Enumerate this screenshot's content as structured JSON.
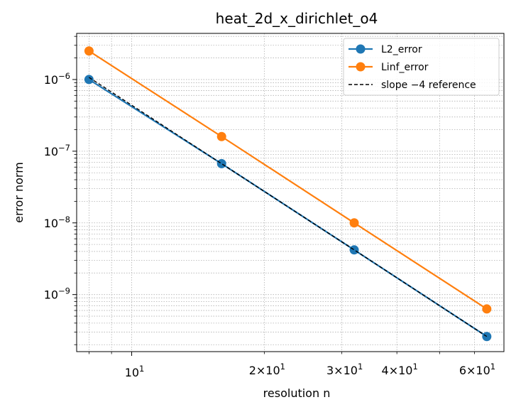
{
  "chart_data": {
    "type": "line",
    "title": "heat_2d_x_dirichlet_o4",
    "xlabel": "resolution n",
    "ylabel": "error norm",
    "xscale": "log",
    "yscale": "log",
    "xlim": [
      7.5,
      70
    ],
    "ylim": [
      1.6e-10,
      4.4e-06
    ],
    "grid": true,
    "legend_position": "top-right",
    "x": [
      8,
      16,
      32,
      64
    ],
    "series": [
      {
        "name": "L2_error",
        "values": [
          1e-06,
          6.7e-08,
          4.2e-09,
          2.6e-10
        ],
        "color": "#1f77b4",
        "marker": "circle",
        "style": "solid"
      },
      {
        "name": "Linf_error",
        "values": [
          2.5e-06,
          1.6e-07,
          1e-08,
          6.3e-10
        ],
        "color": "#ff7f0e",
        "marker": "circle",
        "style": "solid"
      },
      {
        "name": "slope −4 reference",
        "values": [
          1.07e-06,
          6.7e-08,
          4.2e-09,
          2.6e-10
        ],
        "color": "#000000",
        "marker": "none",
        "style": "dashed"
      }
    ],
    "x_tick_labels": [
      {
        "value": 10,
        "base": "10",
        "exp": "1"
      },
      {
        "value": 20,
        "base": "2×10",
        "exp": "1"
      },
      {
        "value": 30,
        "base": "3×10",
        "exp": "1"
      },
      {
        "value": 40,
        "base": "4×10",
        "exp": "1"
      },
      {
        "value": 60,
        "base": "6×10",
        "exp": "1"
      }
    ],
    "y_tick_labels": [
      {
        "value": 1e-09,
        "base": "10",
        "exp": "−9"
      },
      {
        "value": 1e-08,
        "base": "10",
        "exp": "−8"
      },
      {
        "value": 1e-07,
        "base": "10",
        "exp": "−7"
      },
      {
        "value": 1e-06,
        "base": "10",
        "exp": "−6"
      }
    ]
  }
}
